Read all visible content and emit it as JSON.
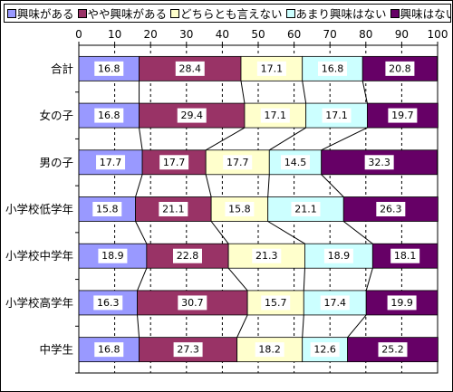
{
  "chart_data": {
    "type": "bar",
    "orientation": "horizontal",
    "stacked": "percent",
    "title": "",
    "xlabel": "",
    "ylabel": "",
    "xlim": [
      0,
      100
    ],
    "x_ticks": [
      "0",
      "10",
      "20",
      "30",
      "40",
      "50",
      "60",
      "70",
      "80",
      "90",
      "100"
    ],
    "grid": "vertical dashed",
    "legend_position": "top",
    "connector_lines": true,
    "categories": [
      "合計",
      "女の子",
      "男の子",
      "小学校低学年",
      "小学校中学年",
      "小学校高学年",
      "中学生"
    ],
    "series": [
      {
        "name": "興味がある",
        "color": "#9999ff",
        "values": [
          16.8,
          16.8,
          17.7,
          15.8,
          18.9,
          16.3,
          16.8
        ]
      },
      {
        "name": "やや興味がある",
        "color": "#993366",
        "values": [
          28.4,
          29.4,
          17.7,
          21.1,
          22.8,
          30.7,
          27.3
        ]
      },
      {
        "name": "どちらとも言えない",
        "color": "#ffffcc",
        "values": [
          17.1,
          17.1,
          17.7,
          15.8,
          21.3,
          15.7,
          18.2
        ]
      },
      {
        "name": "あまり興味はない",
        "color": "#ccffff",
        "values": [
          16.8,
          17.1,
          14.5,
          21.1,
          18.9,
          17.4,
          12.6
        ]
      },
      {
        "name": "興味はない",
        "color": "#660066",
        "values": [
          20.8,
          19.7,
          32.3,
          26.3,
          18.1,
          19.9,
          25.2
        ]
      }
    ]
  }
}
